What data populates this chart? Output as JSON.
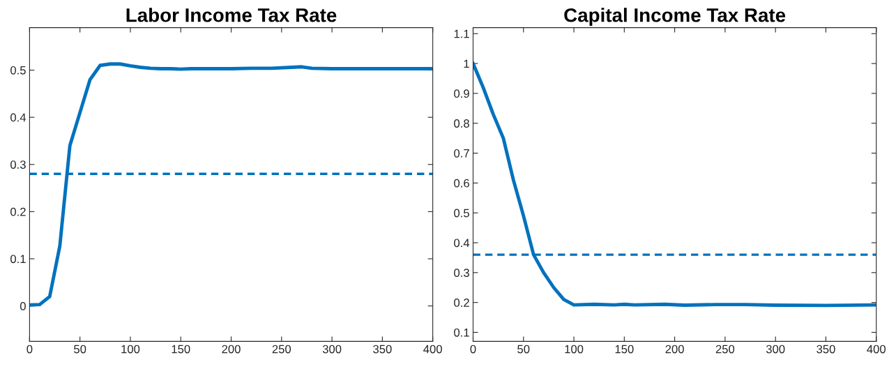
{
  "chart_data": [
    {
      "type": "line",
      "title": "Labor Income Tax Rate",
      "xlim": [
        0,
        400
      ],
      "xticks": [
        0,
        50,
        100,
        150,
        200,
        250,
        300,
        350,
        400
      ],
      "ylim": [
        -0.075,
        0.59
      ],
      "yticks": [
        0,
        0.1,
        0.2,
        0.3,
        0.4,
        0.5
      ],
      "grid": false,
      "legend": false,
      "x": [
        0,
        10,
        20,
        30,
        40,
        50,
        60,
        70,
        80,
        90,
        100,
        110,
        120,
        130,
        140,
        150,
        160,
        180,
        200,
        220,
        240,
        260,
        270,
        280,
        300,
        320,
        340,
        360,
        380,
        400
      ],
      "series": [
        {
          "color": "#0072bd",
          "line_style": "solid",
          "values": [
            0.002,
            0.003,
            0.02,
            0.127,
            0.34,
            0.41,
            0.48,
            0.51,
            0.513,
            0.513,
            0.509,
            0.506,
            0.504,
            0.503,
            0.503,
            0.502,
            0.503,
            0.503,
            0.503,
            0.504,
            0.504,
            0.506,
            0.507,
            0.504,
            0.503,
            0.503,
            0.503,
            0.503,
            0.503,
            0.503
          ]
        }
      ],
      "ref_lines": [
        {
          "axis": "y",
          "value": 0.28,
          "color": "#0072bd",
          "line_style": "dashed"
        }
      ]
    },
    {
      "type": "line",
      "title": "Capital Income Tax Rate",
      "xlim": [
        0,
        400
      ],
      "xticks": [
        0,
        50,
        100,
        150,
        200,
        250,
        300,
        350,
        400
      ],
      "ylim": [
        0.07,
        1.12
      ],
      "yticks": [
        0.1,
        0.2,
        0.3,
        0.4,
        0.5,
        0.6,
        0.7,
        0.8,
        0.9,
        1,
        1.1
      ],
      "grid": false,
      "legend": false,
      "x": [
        0,
        10,
        20,
        30,
        40,
        50,
        60,
        70,
        80,
        90,
        100,
        120,
        140,
        150,
        160,
        190,
        210,
        240,
        270,
        300,
        350,
        400
      ],
      "series": [
        {
          "color": "#0072bd",
          "line_style": "solid",
          "values": [
            1.0,
            0.92,
            0.83,
            0.75,
            0.61,
            0.49,
            0.36,
            0.3,
            0.25,
            0.21,
            0.192,
            0.194,
            0.192,
            0.194,
            0.192,
            0.194,
            0.191,
            0.193,
            0.193,
            0.191,
            0.19,
            0.192
          ]
        }
      ],
      "ref_lines": [
        {
          "axis": "y",
          "value": 0.36,
          "color": "#0072bd",
          "line_style": "dashed"
        }
      ]
    }
  ]
}
